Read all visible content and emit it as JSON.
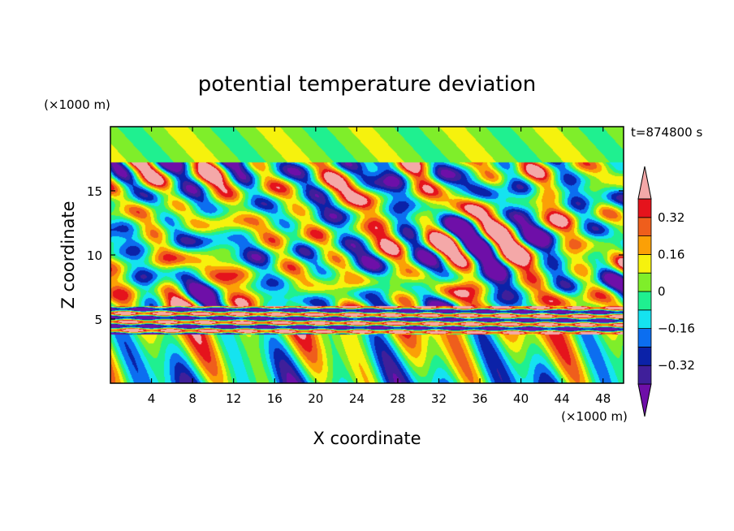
{
  "chart_data": {
    "type": "heatmap",
    "title": "potential temperature deviation",
    "xlabel": "X coordinate",
    "ylabel": "Z coordinate",
    "x_unit": "(×1000 m)",
    "y_unit": "(×1000 m)",
    "time_label": "t=874800 s",
    "xlim": [
      0,
      50
    ],
    "ylim": [
      0,
      20
    ],
    "x_ticks": [
      4,
      8,
      12,
      16,
      20,
      24,
      28,
      32,
      36,
      40,
      44,
      48
    ],
    "x_tick_labels": [
      "4",
      "8",
      "12",
      "16",
      "20",
      "24",
      "28",
      "32",
      "36",
      "40",
      "44",
      "48"
    ],
    "y_ticks": [
      5,
      10,
      15
    ],
    "y_tick_labels": [
      "5",
      "10",
      "15"
    ],
    "colorbar": {
      "levels": [
        -0.4,
        -0.32,
        -0.24,
        -0.16,
        -0.08,
        0,
        0.08,
        0.16,
        0.24,
        0.32,
        0.4
      ],
      "tick_values": [
        -0.32,
        -0.16,
        0,
        0.16,
        0.32
      ],
      "tick_labels": [
        "−0.32",
        "−0.16",
        "0",
        "0.16",
        "0.32"
      ],
      "colors": [
        "#6e0fa8",
        "#3f1f9a",
        "#0b22a8",
        "#0c6ef0",
        "#15e3f0",
        "#1ff090",
        "#7fee2a",
        "#f6f20d",
        "#fba006",
        "#ef5e1c",
        "#e5131c",
        "#f4a8a8"
      ],
      "extend": "both"
    },
    "layers": [
      {
        "z_range": [
          17,
          20
        ],
        "dominant_value": 0.05
      },
      {
        "z_range": [
          11,
          17
        ],
        "dominant_value": "alternating -0.4 to 0.4"
      },
      {
        "z_range": [
          6,
          11
        ],
        "dominant_value": "alternating -0.4 to 0.4"
      },
      {
        "z_range": [
          4,
          6
        ],
        "dominant_value": "banded -0.4 to 0.4"
      },
      {
        "z_range": [
          0,
          4
        ],
        "dominant_value": "-0.2 to 0.4"
      }
    ]
  }
}
